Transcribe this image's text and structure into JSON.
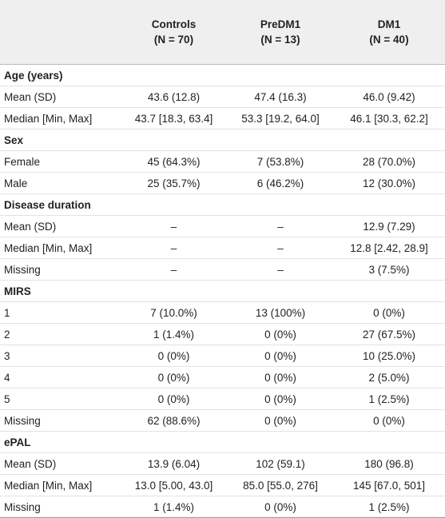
{
  "header": {
    "columns": [
      {
        "name": "Controls",
        "n": "(N = 70)"
      },
      {
        "name": "PreDM1",
        "n": "(N = 13)"
      },
      {
        "name": "DM1",
        "n": "(N = 40)"
      }
    ]
  },
  "sections": [
    {
      "title": "Age (years)",
      "rows": [
        {
          "label": "Mean (SD)",
          "cells": [
            "43.6 (12.8)",
            "47.4 (16.3)",
            "46.0 (9.42)"
          ]
        },
        {
          "label": "Median [Min, Max]",
          "cells": [
            "43.7 [18.3, 63.4]",
            "53.3 [19.2, 64.0]",
            "46.1 [30.3, 62.2]"
          ]
        }
      ]
    },
    {
      "title": "Sex",
      "rows": [
        {
          "label": "Female",
          "cells": [
            "45 (64.3%)",
            "7 (53.8%)",
            "28 (70.0%)"
          ]
        },
        {
          "label": "Male",
          "cells": [
            "25 (35.7%)",
            "6 (46.2%)",
            "12 (30.0%)"
          ]
        }
      ]
    },
    {
      "title": "Disease duration",
      "rows": [
        {
          "label": "Mean (SD)",
          "cells": [
            "–",
            "–",
            "12.9 (7.29)"
          ]
        },
        {
          "label": "Median [Min, Max]",
          "cells": [
            "–",
            "–",
            "12.8 [2.42, 28.9]"
          ]
        },
        {
          "label": "Missing",
          "cells": [
            "–",
            "–",
            "3 (7.5%)"
          ]
        }
      ]
    },
    {
      "title": "MIRS",
      "rows": [
        {
          "label": "1",
          "cells": [
            "7 (10.0%)",
            "13 (100%)",
            "0 (0%)"
          ]
        },
        {
          "label": "2",
          "cells": [
            "1 (1.4%)",
            "0 (0%)",
            "27 (67.5%)"
          ]
        },
        {
          "label": "3",
          "cells": [
            "0 (0%)",
            "0 (0%)",
            "10 (25.0%)"
          ]
        },
        {
          "label": "4",
          "cells": [
            "0 (0%)",
            "0 (0%)",
            "2 (5.0%)"
          ]
        },
        {
          "label": "5",
          "cells": [
            "0 (0%)",
            "0 (0%)",
            "1 (2.5%)"
          ]
        },
        {
          "label": "Missing",
          "cells": [
            "62 (88.6%)",
            "0 (0%)",
            "0 (0%)"
          ]
        }
      ]
    },
    {
      "title": "ePAL",
      "rows": [
        {
          "label": "Mean (SD)",
          "cells": [
            "13.9 (6.04)",
            "102 (59.1)",
            "180 (96.8)"
          ]
        },
        {
          "label": "Median [Min, Max]",
          "cells": [
            "13.0 [5.00, 43.0]",
            "85.0 [55.0, 276]",
            "145 [67.0, 501]"
          ]
        },
        {
          "label": "Missing",
          "cells": [
            "1 (1.4%)",
            "0 (0%)",
            "1 (2.5%)"
          ]
        }
      ]
    }
  ]
}
